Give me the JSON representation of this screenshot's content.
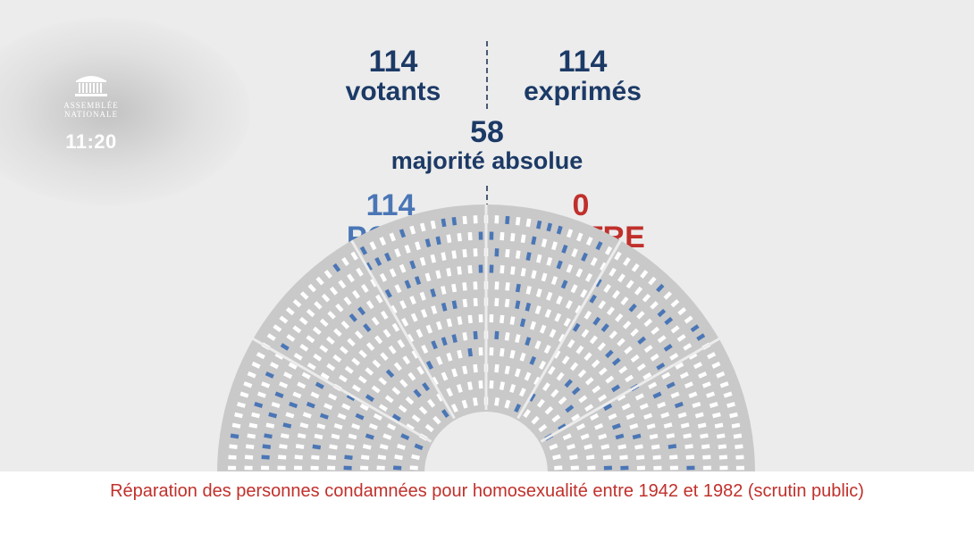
{
  "logo": {
    "line1": "ASSEMBLÉE",
    "line2": "NATIONALE",
    "icon": "assemblee-nationale-building-icon"
  },
  "clock": "11:20",
  "stats": {
    "votants": {
      "value": "114",
      "label": "votants"
    },
    "exprimes": {
      "value": "114",
      "label": "exprimés"
    },
    "majorite": {
      "value": "58",
      "label": "majorité absolue"
    },
    "pour": {
      "value": "114",
      "label": "POUR"
    },
    "contre": {
      "value": "0",
      "label": "CONTRE"
    }
  },
  "caption": "Réparation des personnes condamnées pour homosexualité entre 1942 et 1982 (scrutin public)",
  "colors": {
    "navy": "#1c3a66",
    "pour": "#4a76b6",
    "contre": "#c0302b",
    "seat_empty": "#ffffff",
    "hemicycle_bg": "#c9c9c9"
  },
  "chart_data": {
    "type": "hemicycle",
    "total_seats": 577,
    "series": [
      {
        "name": "POUR",
        "value": 114
      },
      {
        "name": "CONTRE",
        "value": 0
      }
    ]
  }
}
